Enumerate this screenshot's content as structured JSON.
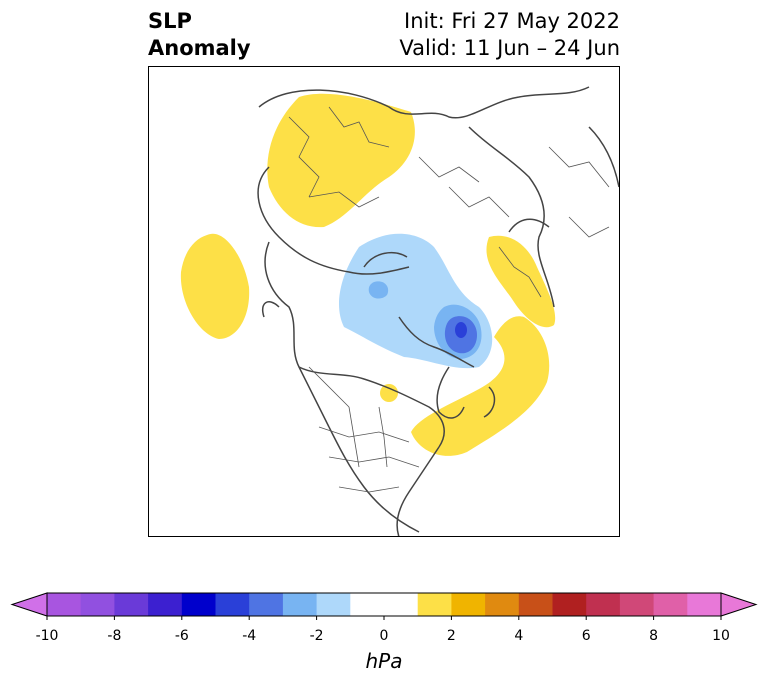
{
  "title": {
    "left_line1": "SLP",
    "left_line2": "Anomaly",
    "right_line1": "Init: Fri 27 May 2022",
    "right_line2": "Valid: 11 Jun – 24 Jun"
  },
  "map": {
    "projection": "north-polar-stereographic",
    "description_icon": "map-icon",
    "anomaly_colors": {
      "positive_light": "#fde047",
      "negative_light": "#aed8fa",
      "negative_mid": "#78b4f2",
      "negative_strong": "#4f74e3",
      "negative_core": "#2a40d8"
    }
  },
  "colorbar": {
    "units": "hPa",
    "ticks": [
      "-10",
      "-8",
      "-6",
      "-4",
      "-2",
      "0",
      "2",
      "4",
      "6",
      "8",
      "10"
    ],
    "tick_values": [
      -10,
      -8,
      -6,
      -4,
      -2,
      0,
      2,
      4,
      6,
      8,
      10
    ],
    "bins": [
      {
        "from": -10,
        "to": -9,
        "color": "#a855e0"
      },
      {
        "from": -9,
        "to": -8,
        "color": "#9150e0"
      },
      {
        "from": -8,
        "to": -7,
        "color": "#6a3ad8"
      },
      {
        "from": -7,
        "to": -6,
        "color": "#3c20d0"
      },
      {
        "from": -6,
        "to": -5,
        "color": "#0000cc"
      },
      {
        "from": -5,
        "to": -4,
        "color": "#2a40d8"
      },
      {
        "from": -4,
        "to": -3,
        "color": "#4f74e3"
      },
      {
        "from": -3,
        "to": -2,
        "color": "#78b4f2"
      },
      {
        "from": -2,
        "to": -1,
        "color": "#aed8fa"
      },
      {
        "from": -1,
        "to": 1,
        "color": "#ffffff"
      },
      {
        "from": 1,
        "to": 2,
        "color": "#fde047"
      },
      {
        "from": 2,
        "to": 3,
        "color": "#f0b400"
      },
      {
        "from": 3,
        "to": 4,
        "color": "#e08a10"
      },
      {
        "from": 4,
        "to": 5,
        "color": "#c85018"
      },
      {
        "from": 5,
        "to": 6,
        "color": "#b02020"
      },
      {
        "from": 6,
        "to": 7,
        "color": "#c03050"
      },
      {
        "from": 7,
        "to": 8,
        "color": "#d04878"
      },
      {
        "from": 8,
        "to": 9,
        "color": "#e060a8"
      },
      {
        "from": 9,
        "to": 10,
        "color": "#e878d8"
      }
    ],
    "extend_low_color": "#d070e8",
    "extend_high_color": "#e878d8"
  }
}
